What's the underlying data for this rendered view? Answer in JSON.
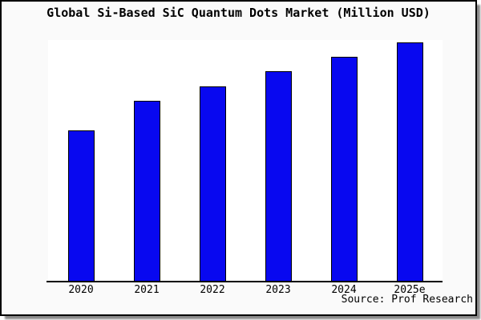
{
  "title": "Global Si-Based SiC Quantum Dots Market (Million USD)",
  "source_note": "Source: Prof Research",
  "colors": {
    "frame_background": "#fafafa",
    "plot_background": "#ffffff",
    "bar_fill": "#0808f0",
    "bar_edge": "#000000",
    "axis": "#000000",
    "text": "#000000",
    "frame_border": "#000000",
    "shadow": "#8a8a8a"
  },
  "chart_data": {
    "type": "bar",
    "title": "Global Si-Based SiC Quantum Dots Market (Million USD)",
    "categories": [
      "2020",
      "2021",
      "2022",
      "2023",
      "2024",
      "2025e"
    ],
    "values": [
      63,
      75.5,
      81.5,
      88,
      94,
      100
    ],
    "units": "relative scale estimated from bar heights (2025e = 100); y-axis has no visible labels",
    "xlabel": "",
    "ylabel": "",
    "ylim": [
      0,
      101
    ],
    "grid": false,
    "legend": "none",
    "y_axis_visible": false,
    "annotations": [
      "Source: Prof Research"
    ]
  }
}
